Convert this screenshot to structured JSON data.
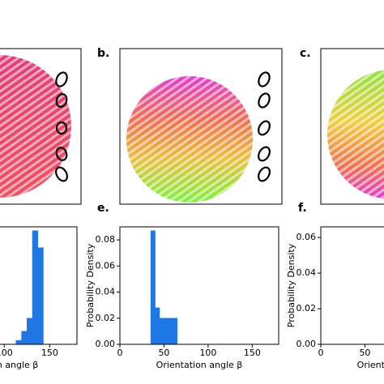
{
  "panels": [
    {
      "label": "b."
    },
    {
      "label": "c."
    }
  ],
  "chart_data": [
    {
      "type": "histogram",
      "label": null,
      "xlabel": "Orientation angle β",
      "bins": [
        113,
        119,
        125,
        131,
        137,
        143
      ],
      "values": [
        0.003,
        0.01,
        0.02,
        0.087,
        0.074
      ],
      "color": "#1f77e4",
      "xlim": [
        0,
        180
      ],
      "ylim": [
        0,
        0.09
      ],
      "xticks": [
        100,
        150
      ]
    },
    {
      "type": "histogram",
      "label": "e.",
      "xlabel": "Orientation angle β",
      "ylabel": "Probability Density",
      "bins": [
        35,
        40,
        45,
        50,
        55,
        60,
        65
      ],
      "values": [
        0.087,
        0.028,
        0.02,
        0.02,
        0.02,
        0.02
      ],
      "color": "#1f77e4",
      "xlim": [
        0,
        180
      ],
      "ylim": [
        0,
        0.09
      ],
      "xticks": [
        0,
        50,
        100,
        150
      ],
      "yticks": [
        {
          "value": 0,
          "label": "0.00"
        },
        {
          "value": 0.02,
          "label": "0.02"
        },
        {
          "value": 0.04,
          "label": "0.04"
        },
        {
          "value": 0.06,
          "label": "0.06"
        },
        {
          "value": 0.08,
          "label": "0.08"
        }
      ]
    },
    {
      "type": "histogram",
      "label": "f.",
      "xlabel": "Orientation angle β",
      "ylabel": "Probability Density",
      "bins": [],
      "values": [],
      "color": "#1f77e4",
      "xlim": [
        0,
        180
      ],
      "ylim": [
        0,
        0.066
      ],
      "xticks": [
        0,
        50
      ],
      "yticks": [
        {
          "value": 0,
          "label": "0.00"
        },
        {
          "value": 0.02,
          "label": "0.02"
        },
        {
          "value": 0.04,
          "label": "0.04"
        },
        {
          "value": 0.06,
          "label": "0.06"
        }
      ]
    }
  ]
}
